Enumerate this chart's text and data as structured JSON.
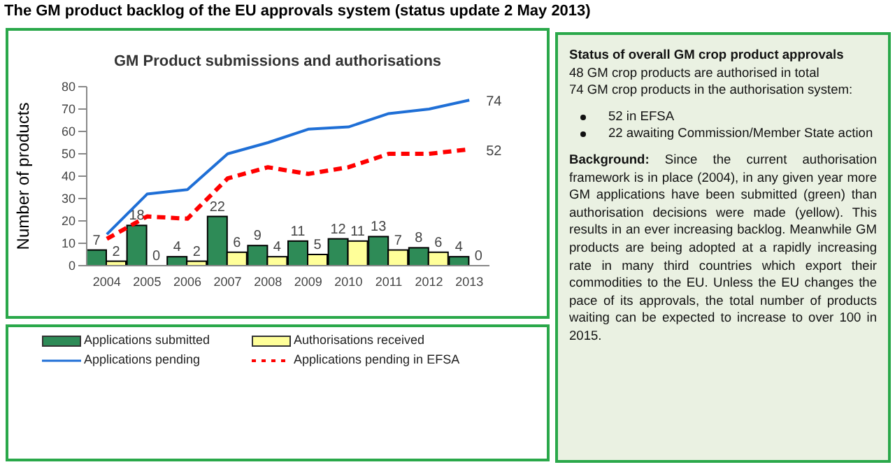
{
  "chart_data": {
    "type": "bar",
    "title": "The GM product backlog of the EU approvals system (status update 2 May 2013)",
    "subtitle": "GM Product submissions and authorisations",
    "ylabel": "Number of products",
    "categories": [
      "2004",
      "2005",
      "2006",
      "2007",
      "2008",
      "2009",
      "2010",
      "2011",
      "2012",
      "2013"
    ],
    "series": [
      {
        "name": "Applications submitted",
        "color": "#2e8b57",
        "values": [
          7,
          18,
          4,
          22,
          9,
          11,
          12,
          13,
          8,
          4
        ],
        "value_labels": [
          "7",
          "18",
          "4",
          "22",
          "9",
          "11",
          "12",
          "13",
          "8",
          "4"
        ]
      },
      {
        "name": "Authorisations received",
        "color": "#ffff99",
        "values": [
          2,
          0,
          2,
          6,
          4,
          5,
          11,
          7,
          6,
          0
        ],
        "value_labels": [
          "2",
          "0",
          "2",
          "6",
          "4",
          "5",
          "11",
          "7",
          "6",
          "0"
        ]
      },
      {
        "name": "Applications pending",
        "type": "line",
        "color": "#1f6fd6",
        "line_style": "solid",
        "values": [
          14,
          32,
          34,
          50,
          55,
          61,
          62,
          68,
          70,
          74
        ],
        "value_labels": [
          null,
          null,
          null,
          null,
          null,
          null,
          null,
          null,
          null,
          "74"
        ]
      },
      {
        "name": "Applications pending in EFSA",
        "type": "line",
        "color": "#ff0000",
        "line_style": "dashed",
        "values": [
          12,
          22,
          21,
          39,
          44,
          41,
          44,
          50,
          50,
          52
        ],
        "value_labels": [
          null,
          null,
          null,
          null,
          null,
          null,
          null,
          null,
          null,
          "52"
        ]
      }
    ],
    "ylim": [
      0,
      80
    ],
    "yticks": [
      0,
      10,
      20,
      30,
      40,
      50,
      60,
      70,
      80
    ],
    "grid": false,
    "legend": "bottom",
    "marker": "none",
    "annotations": [
      "Status of overall GM crop product approvals",
      "48 GM crop products are authorised in total",
      "74 GM crop products in the authorisation system:",
      "52 in EFSA",
      "22 awaiting Commission/Member State action",
      "Background:",
      "Since the current authorisation framework is in place (2004), in any given year more GM applications have been submitted (green) than authorisation decisions were made (yellow). This results in an ever increasing backlog. Meanwhile GM products are being adopted at a rapidly increasing rate in many third countries which export their commodities to the EU. Unless the EU changes the pace of its approvals, the total number of products waiting can be expected to increase to over 100 in 2015."
    ]
  }
}
